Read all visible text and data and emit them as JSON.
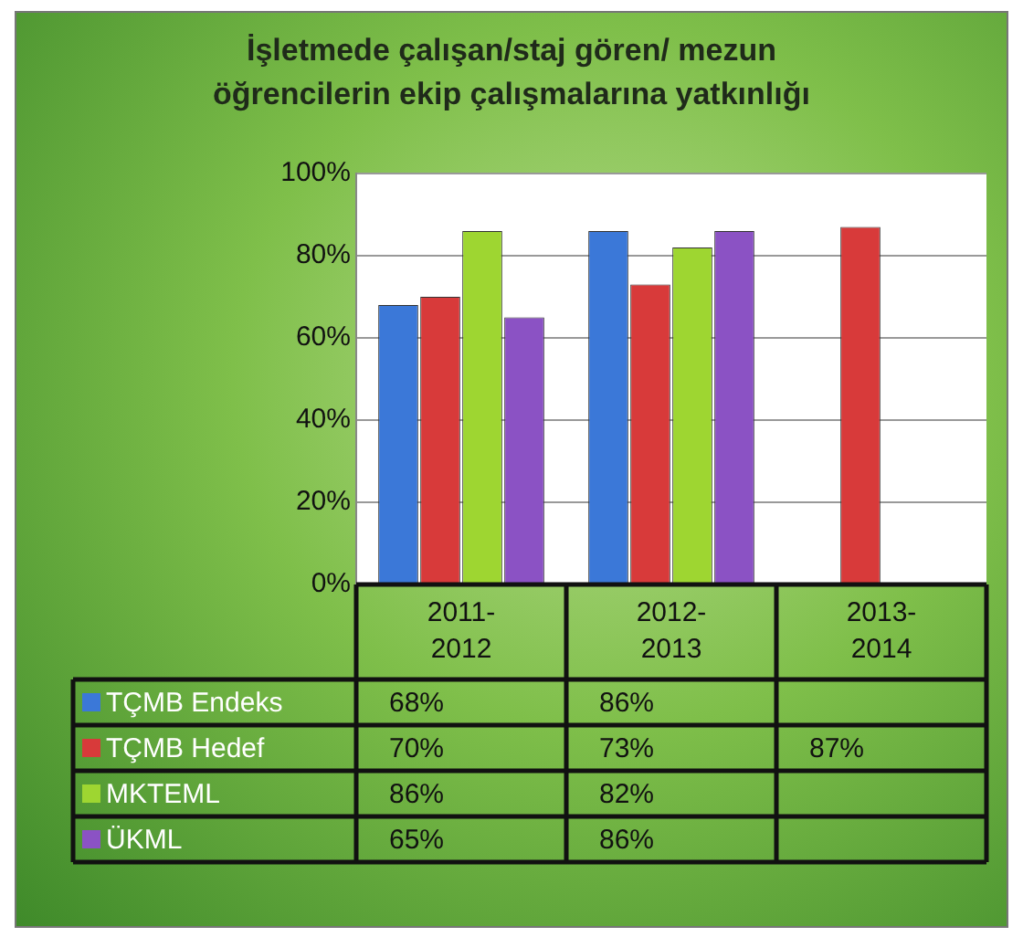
{
  "chart_data": {
    "type": "bar",
    "title": "İşletmede çalışan/staj gören/ mezun öğrencilerin ekip çalışmalarına yatkınlığı",
    "categories": [
      "2011-2012",
      "2012-2013",
      "2013-2014"
    ],
    "series": [
      {
        "name": "TÇMB Endeks",
        "color": "#3b78d8",
        "values": [
          68,
          86,
          null
        ],
        "value_labels": [
          "68%",
          "86%",
          null
        ]
      },
      {
        "name": "TÇMB Hedef",
        "color": "#d83a3a",
        "values": [
          70,
          73,
          87
        ],
        "value_labels": [
          "70%",
          "73%",
          "87%"
        ]
      },
      {
        "name": "MKTEML",
        "color": "#9ed631",
        "values": [
          86,
          82,
          null
        ],
        "value_labels": [
          "86%",
          "82%",
          null
        ]
      },
      {
        "name": "ÜKML",
        "color": "#8b52c4",
        "values": [
          65,
          86,
          null
        ],
        "value_labels": [
          "65%",
          "86%",
          null
        ]
      }
    ],
    "ylim": [
      0,
      100
    ],
    "yticks": [
      {
        "value": 0,
        "label": "0%"
      },
      {
        "value": 20,
        "label": "20%"
      },
      {
        "value": 40,
        "label": "40%"
      },
      {
        "value": 60,
        "label": "60%"
      },
      {
        "value": 80,
        "label": "80%"
      },
      {
        "value": 100,
        "label": "100%"
      }
    ],
    "grid": "y",
    "legend": "bottom"
  }
}
